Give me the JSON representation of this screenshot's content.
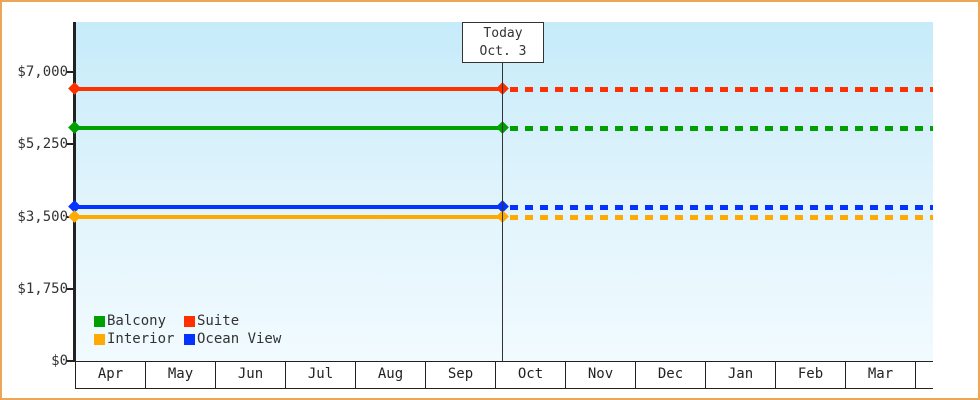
{
  "today_marker": {
    "line1": "Today",
    "line2": "Oct. 3"
  },
  "legend": {
    "position": "bottom-left",
    "items": [
      {
        "label": "Balcony",
        "color": "#00a000"
      },
      {
        "label": "Suite",
        "color": "#ff3000"
      },
      {
        "label": "Interior",
        "color": "#ffaa00"
      },
      {
        "label": "Ocean View",
        "color": "#0433ff"
      }
    ]
  },
  "chart_data": {
    "type": "line",
    "title": "",
    "x_categories": [
      "Apr",
      "May",
      "Jun",
      "Jul",
      "Aug",
      "Sep",
      "Oct",
      "Nov",
      "Dec",
      "Jan",
      "Feb",
      "Mar"
    ],
    "y_ticks": [
      {
        "label": "$0",
        "value": 0
      },
      {
        "label": "$1,750",
        "value": 1750
      },
      {
        "label": "$3,500",
        "value": 3500
      },
      {
        "label": "$5,250",
        "value": 5250
      },
      {
        "label": "$7,000",
        "value": 7000
      }
    ],
    "ylim": [
      0,
      8200
    ],
    "grid": false,
    "series": [
      {
        "name": "Suite",
        "color": "#ff3000",
        "value": 6600
      },
      {
        "name": "Balcony",
        "color": "#00a000",
        "value": 5650
      },
      {
        "name": "Ocean View",
        "color": "#0433ff",
        "value": 3730
      },
      {
        "name": "Interior",
        "color": "#ffaa00",
        "value": 3500
      }
    ],
    "today": {
      "label": "Today",
      "date_label": "Oct. 3",
      "x_month": "Oct",
      "x_fraction": 0.1,
      "line_style_before": "solid",
      "line_style_after": "dotted"
    }
  },
  "colors": {
    "frame_border": "#eba757",
    "plot_bg_top": "#c6ebfa",
    "plot_bg_bottom": "#f1fbff",
    "axis": "#222222",
    "text": "#333333",
    "today_box_bg": "#ffffff"
  }
}
